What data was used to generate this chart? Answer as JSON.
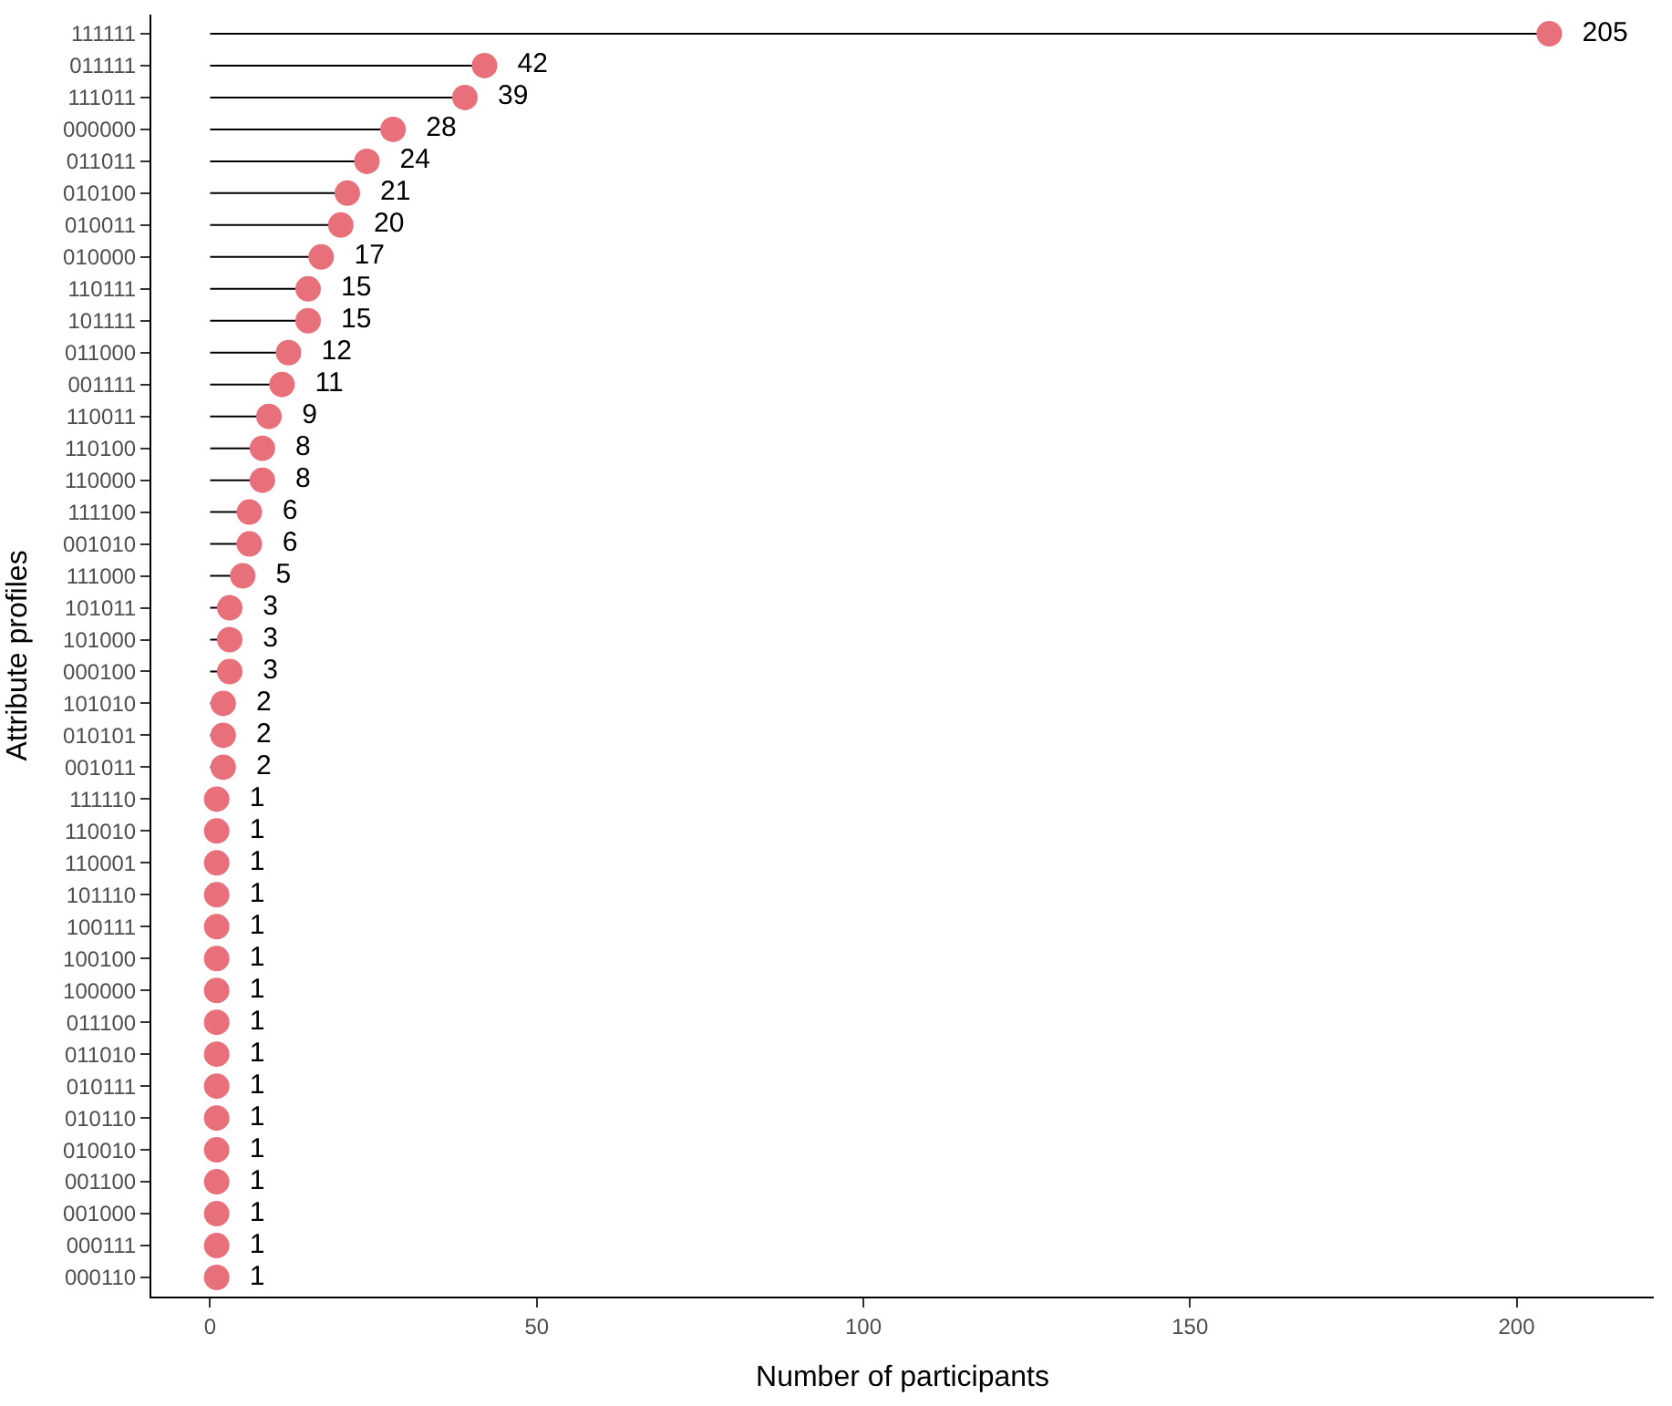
{
  "chart_data": {
    "type": "lollipop",
    "orientation": "horizontal",
    "xlabel": "Number of participants",
    "ylabel": "Attribute profiles",
    "categories": [
      "111111",
      "011111",
      "111011",
      "000000",
      "011011",
      "010100",
      "010011",
      "010000",
      "110111",
      "101111",
      "011000",
      "001111",
      "110011",
      "110100",
      "110000",
      "111100",
      "001010",
      "111000",
      "101011",
      "101000",
      "000100",
      "101010",
      "010101",
      "001011",
      "111110",
      "110010",
      "110001",
      "101110",
      "100111",
      "100100",
      "100000",
      "011100",
      "011010",
      "010111",
      "010110",
      "010010",
      "001100",
      "001000",
      "000111",
      "000110"
    ],
    "values": [
      205,
      42,
      39,
      28,
      24,
      21,
      20,
      17,
      15,
      15,
      12,
      11,
      9,
      8,
      8,
      6,
      6,
      5,
      3,
      3,
      3,
      2,
      2,
      2,
      1,
      1,
      1,
      1,
      1,
      1,
      1,
      1,
      1,
      1,
      1,
      1,
      1,
      1,
      1,
      1
    ],
    "color": "#e8707b",
    "marker": "circle",
    "data_labels": true,
    "xlim": [
      -9,
      221
    ],
    "xticks": [
      0,
      50,
      100,
      150,
      200
    ]
  }
}
